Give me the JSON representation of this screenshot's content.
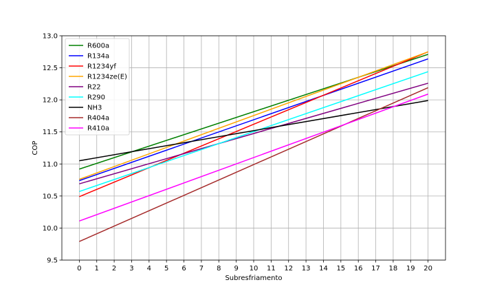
{
  "chart_data": {
    "type": "line",
    "title": "",
    "xlabel": "Subresfriamento",
    "ylabel": "COP",
    "xlim": [
      -1,
      21
    ],
    "ylim": [
      9.5,
      13.0
    ],
    "x_ticks": [
      0,
      1,
      2,
      3,
      4,
      5,
      6,
      7,
      8,
      9,
      10,
      11,
      12,
      13,
      14,
      15,
      16,
      17,
      18,
      19,
      20
    ],
    "y_ticks": [
      9.5,
      10.0,
      10.5,
      11.0,
      11.5,
      12.0,
      12.5,
      13.0
    ],
    "x_tick_labels": [
      "0",
      "1",
      "2",
      "3",
      "4",
      "5",
      "6",
      "7",
      "8",
      "9",
      "10",
      "11",
      "12",
      "13",
      "14",
      "15",
      "16",
      "17",
      "18",
      "19",
      "20"
    ],
    "y_tick_labels": [
      "9.5",
      "10.0",
      "10.5",
      "11.0",
      "11.5",
      "12.0",
      "12.5",
      "13.0"
    ],
    "grid": true,
    "legend_position": "top-left",
    "series": [
      {
        "name": "R600a",
        "color": "#008000",
        "x": [
          0,
          20
        ],
        "y": [
          10.92,
          12.71
        ]
      },
      {
        "name": "R134a",
        "color": "#0000ff",
        "x": [
          0,
          20
        ],
        "y": [
          10.74,
          12.64
        ]
      },
      {
        "name": "R1234yf",
        "color": "#ff0000",
        "x": [
          0,
          20
        ],
        "y": [
          10.49,
          12.75
        ]
      },
      {
        "name": "R1234ze(E)",
        "color": "#ffa500",
        "x": [
          0,
          20
        ],
        "y": [
          10.76,
          12.75
        ]
      },
      {
        "name": "R22",
        "color": "#800080",
        "x": [
          0,
          20
        ],
        "y": [
          10.69,
          12.26
        ]
      },
      {
        "name": "R290",
        "color": "#00ffff",
        "x": [
          0,
          20
        ],
        "y": [
          10.57,
          12.44
        ]
      },
      {
        "name": "NH3",
        "color": "#000000",
        "x": [
          0,
          20
        ],
        "y": [
          11.05,
          11.99
        ]
      },
      {
        "name": "R404a",
        "color": "#a52a2a",
        "x": [
          0,
          20
        ],
        "y": [
          9.79,
          12.19
        ]
      },
      {
        "name": "R410a",
        "color": "#ff00ff",
        "x": [
          0,
          20
        ],
        "y": [
          10.11,
          12.09
        ]
      }
    ]
  }
}
